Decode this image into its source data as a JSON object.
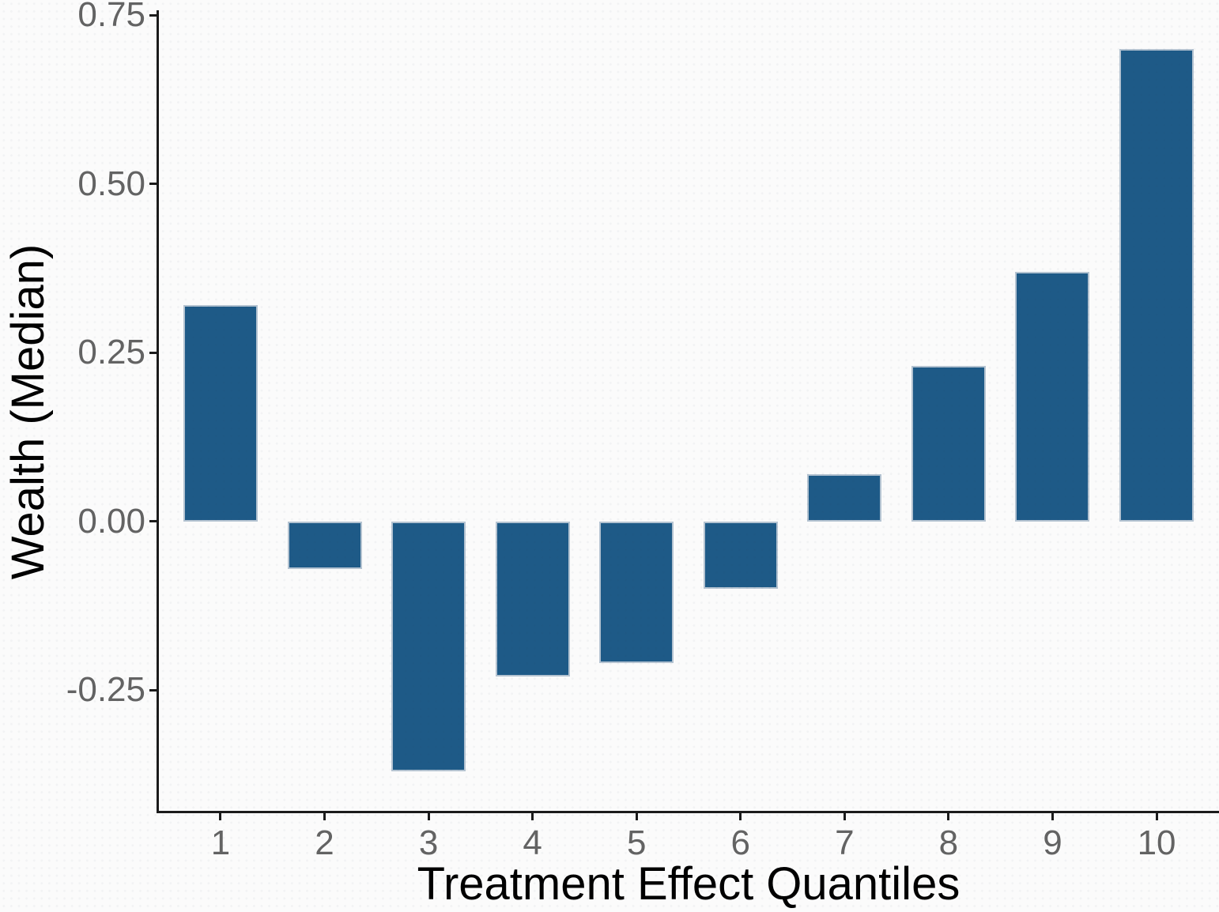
{
  "figure": {
    "background_color": "#fbfbfb"
  },
  "chart_data": {
    "type": "bar",
    "title": "",
    "xlabel": "Treatment Effect Quantiles",
    "ylabel": "Wealth (Median)",
    "categories": [
      "1",
      "2",
      "3",
      "4",
      "5",
      "6",
      "7",
      "8",
      "9",
      "10"
    ],
    "values": [
      0.32,
      -0.07,
      -0.37,
      -0.23,
      -0.21,
      -0.1,
      0.07,
      0.23,
      0.37,
      0.7
    ],
    "y_ticks": [
      {
        "value": 0.75,
        "label": "0.75"
      },
      {
        "value": 0.5,
        "label": "0.50"
      },
      {
        "value": 0.25,
        "label": "0.25"
      },
      {
        "value": 0.0,
        "label": "0.00"
      },
      {
        "value": -0.25,
        "label": "-0.25"
      }
    ],
    "ylim": [
      -0.43,
      0.755
    ],
    "grid": false,
    "legend": false,
    "colors": {
      "bar_fill": "#1e5a87",
      "bar_edge": "#b4c3d1",
      "axis_line": "#1b1b1b",
      "tick_label": "#636363",
      "axis_title": "#000000",
      "background": "#fbfbfb"
    }
  }
}
